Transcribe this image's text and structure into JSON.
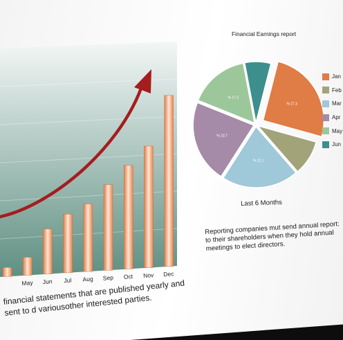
{
  "bar_chart": {
    "type": "bar",
    "categories": [
      "",
      "May",
      "Jun",
      "Jul",
      "Aug",
      "Sep",
      "Oct",
      "Nov",
      "Dec"
    ],
    "values": [
      1,
      2,
      5,
      6.5,
      7.5,
      9.5,
      11.5,
      13.5,
      19
    ],
    "max": 20,
    "bar_color": "#f29a6a",
    "trend_color": "#a51d1f"
  },
  "pie_chart": {
    "type": "pie",
    "title": "Financial Earnings report",
    "subtitle": "Last 6 Months",
    "slices": [
      {
        "name": "Jan",
        "value": 27.3,
        "label": "% 27.3",
        "color": "#e07c45",
        "exploded": true
      },
      {
        "name": "Feb",
        "value": 10.0,
        "label": "",
        "color": "#a3a37a",
        "exploded": false
      },
      {
        "name": "Mar",
        "value": 22.1,
        "label": "% 22.1",
        "color": "#9fc8d9",
        "exploded": false
      },
      {
        "name": "Apr",
        "value": 23.7,
        "label": "% 23.7",
        "color": "#a58ba8",
        "exploded": false
      },
      {
        "name": "May",
        "value": 17.2,
        "label": "% 17.2",
        "color": "#9cc79a",
        "exploded": false
      },
      {
        "name": "Jun",
        "value": 7.5,
        "label": "",
        "color": "#3c8f8d",
        "exploded": false
      }
    ]
  },
  "text": {
    "reporting": "Reporting companies mut send annual report: to their shareholders when they hold annual meetings to elect directors.",
    "caption": "financial statements that are published yearly and sent to d variousother interested parties."
  }
}
